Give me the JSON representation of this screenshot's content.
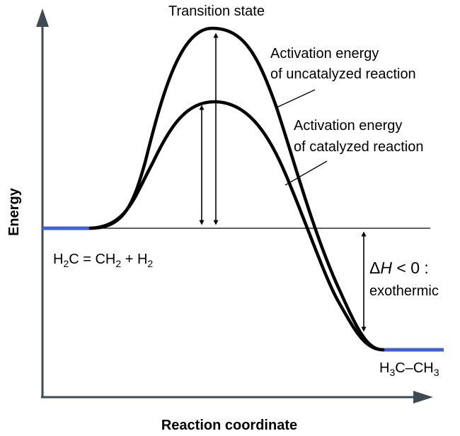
{
  "labels": {
    "y_axis": "Energy",
    "x_axis": "Reaction coordinate",
    "transition_state": "Transition state",
    "uncatalyzed_line1": "Activation energy",
    "uncatalyzed_line2": "of uncatalyzed reaction",
    "catalyzed_line1": "Activation energy",
    "catalyzed_line2": "of catalyzed reaction",
    "delta_h_symbol": "Δ",
    "delta_h_var": "H",
    "delta_h_rest": " < 0 :",
    "delta_h_line2": "exothermic"
  },
  "reactants": {
    "h": "H",
    "sub2a": "2",
    "c_eq": "C = CH",
    "sub2b": "2",
    "plus": " + H",
    "sub2c": "2"
  },
  "products": {
    "h": "H",
    "sub3a": "3",
    "c_dash": "C–CH",
    "sub3b": "3"
  },
  "colors": {
    "axis": "#3f4a52",
    "curve": "#000000",
    "energy_level": "#3f5fd8"
  }
}
